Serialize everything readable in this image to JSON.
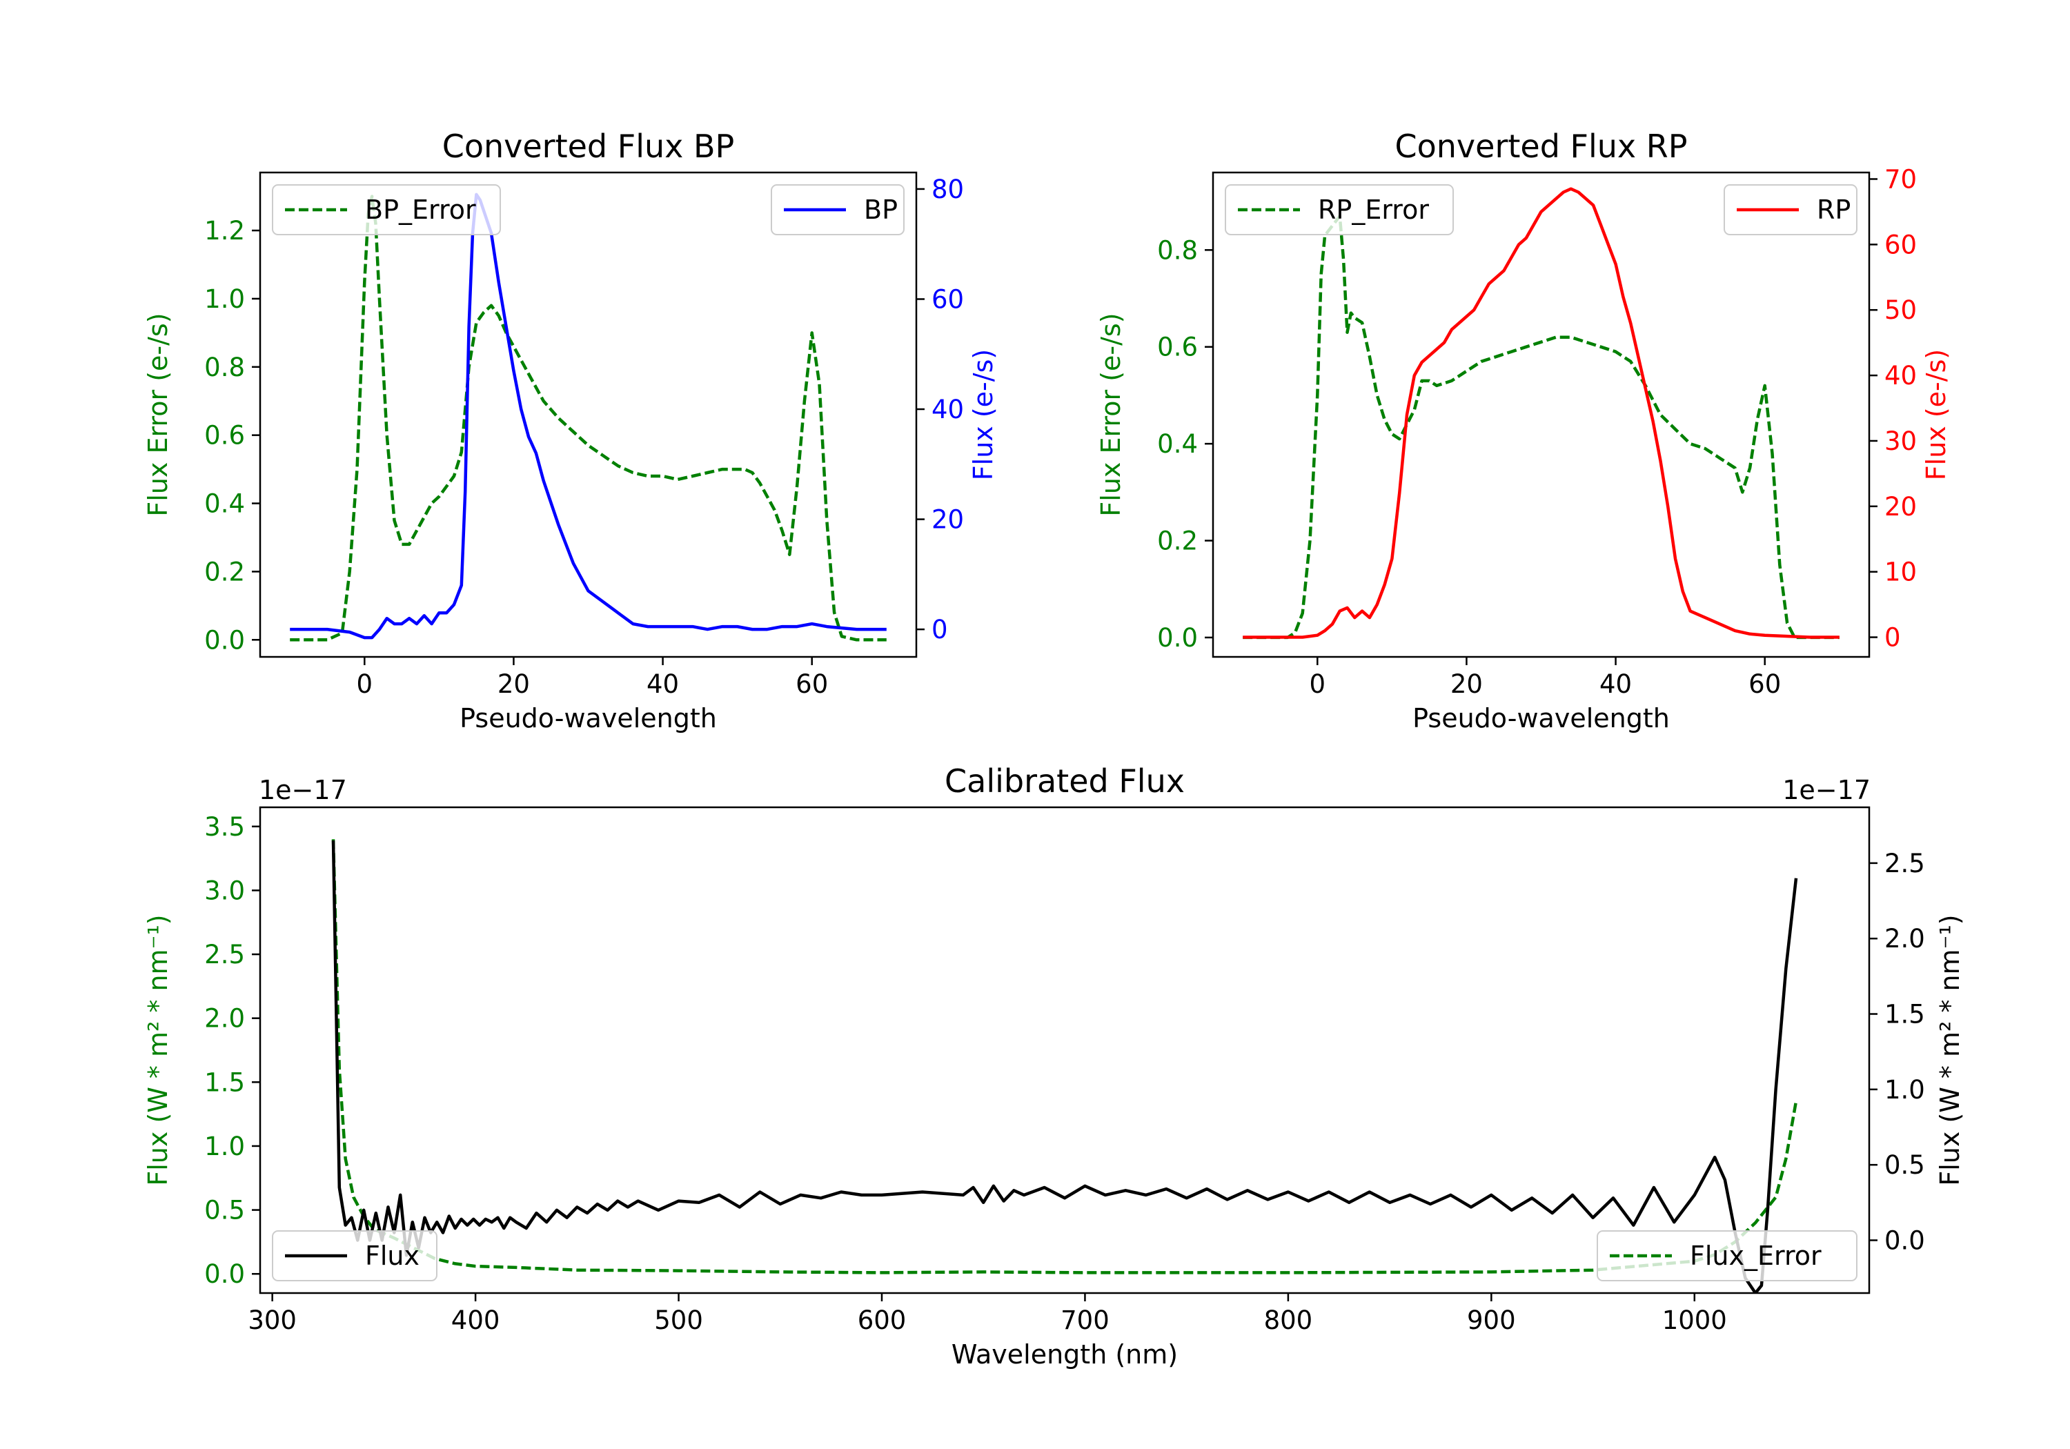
{
  "colors": {
    "bp": "#0000ff",
    "rp": "#ff0000",
    "error": "#008000",
    "flux": "#000000",
    "axis": "#000000"
  },
  "chart_data": [
    {
      "id": "bp",
      "type": "line",
      "title": "Converted Flux BP",
      "xlabel": "Pseudo-wavelength",
      "ylabel_left": "Flux Error (e-/s)",
      "ylabel_right": "Flux (e-/s)",
      "xlim": [
        -14,
        74
      ],
      "ylim_left": [
        -0.05,
        1.37
      ],
      "ylim_right": [
        -5,
        83
      ],
      "xticks": [
        0,
        20,
        40,
        60
      ],
      "yticks_left": [
        0.0,
        0.2,
        0.4,
        0.6,
        0.8,
        1.0,
        1.2
      ],
      "ytick_labels_left": [
        "0.0",
        "0.2",
        "0.4",
        "0.6",
        "0.8",
        "1.0",
        "1.2"
      ],
      "yticks_right": [
        0,
        20,
        40,
        60,
        80
      ],
      "ytick_labels_right": [
        "0",
        "20",
        "40",
        "60",
        "80"
      ],
      "legend_left": "BP_Error",
      "legend_right": "BP",
      "series": [
        {
          "name": "BP_Error",
          "axis": "left",
          "style": "dashed",
          "x": [
            -10,
            -5,
            -3,
            -2,
            -1,
            0,
            0.5,
            1,
            1.5,
            2,
            3,
            4,
            5,
            6,
            7,
            8,
            9,
            10,
            11,
            12,
            13,
            14,
            15,
            16,
            17,
            18,
            19,
            20,
            22,
            24,
            26,
            28,
            30,
            32,
            34,
            36,
            38,
            40,
            42,
            44,
            46,
            48,
            50,
            51,
            52,
            53,
            54,
            55,
            56,
            57,
            58,
            59,
            60,
            61,
            62,
            63,
            64,
            66,
            70
          ],
          "y": [
            0.0,
            0.0,
            0.02,
            0.2,
            0.5,
            1.05,
            1.25,
            1.3,
            1.22,
            1.0,
            0.6,
            0.35,
            0.28,
            0.28,
            0.32,
            0.36,
            0.4,
            0.42,
            0.45,
            0.48,
            0.55,
            0.8,
            0.93,
            0.96,
            0.98,
            0.95,
            0.9,
            0.86,
            0.78,
            0.7,
            0.65,
            0.61,
            0.57,
            0.54,
            0.51,
            0.49,
            0.48,
            0.48,
            0.47,
            0.48,
            0.49,
            0.5,
            0.5,
            0.5,
            0.49,
            0.46,
            0.42,
            0.38,
            0.32,
            0.25,
            0.45,
            0.7,
            0.9,
            0.75,
            0.35,
            0.08,
            0.01,
            0.0,
            0.0
          ]
        },
        {
          "name": "BP",
          "axis": "right",
          "style": "solid",
          "x": [
            -10,
            -5,
            -2,
            0,
            1,
            2,
            3,
            4,
            5,
            6,
            7,
            8,
            9,
            10,
            11,
            12,
            13,
            13.5,
            14,
            14.5,
            15,
            15.5,
            16,
            17,
            18,
            19,
            20,
            21,
            22,
            23,
            24,
            25,
            26,
            28,
            30,
            32,
            34,
            36,
            38,
            40,
            42,
            44,
            46,
            48,
            50,
            52,
            54,
            56,
            58,
            60,
            62,
            66,
            70
          ],
          "y": [
            0,
            0,
            -0.5,
            -1.5,
            -1.5,
            0,
            2,
            1,
            1,
            2,
            1,
            2.5,
            1,
            3,
            3,
            4.5,
            8,
            25,
            55,
            72,
            79,
            78,
            76,
            72,
            63,
            55,
            47,
            40,
            35,
            32,
            27,
            23,
            19,
            12,
            7,
            5,
            3,
            1,
            0.5,
            0.5,
            0.5,
            0.5,
            0,
            0.5,
            0.5,
            0,
            0,
            0.5,
            0.5,
            1,
            0.5,
            0,
            0
          ]
        }
      ]
    },
    {
      "id": "rp",
      "type": "line",
      "title": "Converted Flux RP",
      "xlabel": "Pseudo-wavelength",
      "ylabel_left": "Flux Error (e-/s)",
      "ylabel_right": "Flux (e-/s)",
      "xlim": [
        -14,
        74
      ],
      "ylim_left": [
        -0.04,
        0.96
      ],
      "ylim_right": [
        -3,
        71
      ],
      "xticks": [
        0,
        20,
        40,
        60
      ],
      "yticks_left": [
        0.0,
        0.2,
        0.4,
        0.6,
        0.8
      ],
      "ytick_labels_left": [
        "0.0",
        "0.2",
        "0.4",
        "0.6",
        "0.8"
      ],
      "yticks_right": [
        0,
        10,
        20,
        30,
        40,
        50,
        60,
        70
      ],
      "ytick_labels_right": [
        "0",
        "10",
        "20",
        "30",
        "40",
        "50",
        "60",
        "70"
      ],
      "legend_left": "RP_Error",
      "legend_right": "RP",
      "series": [
        {
          "name": "RP_Error",
          "axis": "left",
          "style": "dashed",
          "x": [
            -10,
            -4,
            -3,
            -2,
            -1,
            0,
            0.5,
            1,
            2,
            3,
            3.5,
            4,
            4.5,
            5,
            6,
            7,
            8,
            9,
            10,
            11,
            12,
            13,
            14,
            15,
            16,
            18,
            20,
            22,
            24,
            26,
            28,
            30,
            32,
            34,
            36,
            38,
            40,
            42,
            44,
            46,
            48,
            50,
            52,
            54,
            55,
            56,
            57,
            58,
            59,
            60,
            61,
            62,
            63,
            64,
            66,
            70
          ],
          "y": [
            0.0,
            0.0,
            0.01,
            0.05,
            0.2,
            0.5,
            0.75,
            0.83,
            0.85,
            0.87,
            0.78,
            0.63,
            0.67,
            0.66,
            0.65,
            0.58,
            0.5,
            0.45,
            0.42,
            0.41,
            0.44,
            0.47,
            0.53,
            0.53,
            0.52,
            0.53,
            0.55,
            0.57,
            0.58,
            0.59,
            0.6,
            0.61,
            0.62,
            0.62,
            0.61,
            0.6,
            0.59,
            0.57,
            0.52,
            0.46,
            0.43,
            0.4,
            0.39,
            0.37,
            0.36,
            0.35,
            0.3,
            0.35,
            0.45,
            0.52,
            0.38,
            0.15,
            0.03,
            0.0,
            0.0,
            0.0
          ]
        },
        {
          "name": "RP",
          "axis": "right",
          "style": "solid",
          "x": [
            -10,
            -5,
            -2,
            0,
            1,
            2,
            3,
            4,
            5,
            6,
            7,
            8,
            9,
            10,
            11,
            12,
            13,
            14,
            15,
            16,
            17,
            18,
            19,
            20,
            21,
            22,
            23,
            24,
            25,
            26,
            27,
            28,
            29,
            30,
            31,
            32,
            33,
            34,
            35,
            36,
            37,
            38,
            39,
            40,
            41,
            42,
            43,
            44,
            45,
            46,
            47,
            48,
            49,
            50,
            52,
            54,
            56,
            58,
            60,
            62,
            66,
            70
          ],
          "y": [
            0,
            0,
            0,
            0.3,
            1,
            2,
            4,
            4.5,
            3,
            4,
            3,
            5,
            8,
            12,
            22,
            34,
            40,
            42,
            43,
            44,
            45,
            47,
            48,
            49,
            50,
            52,
            54,
            55,
            56,
            58,
            60,
            61,
            63,
            65,
            66,
            67,
            68,
            68.5,
            68,
            67,
            66,
            63,
            60,
            57,
            52,
            48,
            43,
            38,
            33,
            27,
            20,
            12,
            7,
            4,
            3,
            2,
            1,
            0.5,
            0.3,
            0.2,
            0,
            0
          ]
        }
      ]
    },
    {
      "id": "calibrated",
      "type": "line",
      "title": "Calibrated Flux",
      "xlabel": "Wavelength (nm)",
      "ylabel_left": "Flux (W * m² * nm⁻¹)",
      "ylabel_right": "Flux (W * m² * nm⁻¹)",
      "offset_left": "1e−17",
      "offset_right": "1e−17",
      "xlim": [
        294,
        1086
      ],
      "ylim_left": [
        -0.15,
        3.65
      ],
      "ylim_right": [
        -0.35,
        2.87
      ],
      "xticks": [
        300,
        400,
        500,
        600,
        700,
        800,
        900,
        1000
      ],
      "yticks_left": [
        0.0,
        0.5,
        1.0,
        1.5,
        2.0,
        2.5,
        3.0,
        3.5
      ],
      "ytick_labels_left": [
        "0.0",
        "0.5",
        "1.0",
        "1.5",
        "2.0",
        "2.5",
        "3.0",
        "3.5"
      ],
      "yticks_right": [
        0.0,
        0.5,
        1.0,
        1.5,
        2.0,
        2.5
      ],
      "ytick_labels_right": [
        "0.0",
        "0.5",
        "1.0",
        "1.5",
        "2.0",
        "2.5"
      ],
      "legend_left": "Flux",
      "legend_right": "Flux_Error",
      "series": [
        {
          "name": "Flux_Error",
          "axis": "left",
          "style": "dashed",
          "x": [
            330,
            333,
            336,
            340,
            345,
            350,
            360,
            370,
            380,
            390,
            400,
            420,
            450,
            500,
            550,
            600,
            650,
            700,
            800,
            900,
            950,
            1000,
            1010,
            1020,
            1030,
            1040,
            1045,
            1050
          ],
          "y": [
            3.4,
            1.6,
            0.9,
            0.6,
            0.45,
            0.35,
            0.28,
            0.2,
            0.12,
            0.08,
            0.06,
            0.05,
            0.03,
            0.025,
            0.015,
            0.01,
            0.015,
            0.01,
            0.01,
            0.015,
            0.03,
            0.1,
            0.15,
            0.25,
            0.4,
            0.6,
            0.9,
            1.35
          ]
        },
        {
          "name": "Flux",
          "axis": "right",
          "style": "solid",
          "x": [
            330,
            333,
            336,
            339,
            342,
            345,
            348,
            351,
            354,
            357,
            360,
            363,
            366,
            369,
            372,
            375,
            378,
            381,
            384,
            387,
            390,
            393,
            396,
            399,
            402,
            405,
            408,
            411,
            414,
            417,
            420,
            425,
            430,
            435,
            440,
            445,
            450,
            455,
            460,
            465,
            470,
            475,
            480,
            490,
            500,
            510,
            520,
            530,
            540,
            550,
            560,
            570,
            580,
            590,
            600,
            620,
            640,
            645,
            650,
            655,
            660,
            665,
            670,
            680,
            690,
            700,
            710,
            720,
            730,
            740,
            750,
            760,
            770,
            780,
            790,
            800,
            810,
            820,
            830,
            840,
            850,
            860,
            870,
            880,
            890,
            900,
            910,
            920,
            930,
            940,
            950,
            960,
            970,
            980,
            990,
            1000,
            1010,
            1015,
            1020,
            1025,
            1030,
            1033,
            1036,
            1040,
            1045,
            1050
          ],
          "y": [
            2.65,
            0.35,
            0.1,
            0.15,
            0.0,
            0.2,
            0.0,
            0.18,
            0.0,
            0.22,
            0.05,
            0.3,
            -0.1,
            0.12,
            -0.05,
            0.15,
            0.05,
            0.12,
            0.05,
            0.16,
            0.08,
            0.14,
            0.1,
            0.14,
            0.1,
            0.14,
            0.12,
            0.15,
            0.08,
            0.15,
            0.12,
            0.08,
            0.18,
            0.12,
            0.2,
            0.15,
            0.22,
            0.18,
            0.24,
            0.2,
            0.26,
            0.22,
            0.26,
            0.2,
            0.26,
            0.25,
            0.3,
            0.22,
            0.32,
            0.24,
            0.3,
            0.28,
            0.32,
            0.3,
            0.3,
            0.32,
            0.3,
            0.35,
            0.25,
            0.36,
            0.26,
            0.33,
            0.3,
            0.35,
            0.28,
            0.36,
            0.3,
            0.33,
            0.3,
            0.34,
            0.28,
            0.34,
            0.27,
            0.33,
            0.27,
            0.32,
            0.26,
            0.32,
            0.25,
            0.32,
            0.25,
            0.3,
            0.24,
            0.3,
            0.22,
            0.3,
            0.2,
            0.28,
            0.18,
            0.3,
            0.15,
            0.28,
            0.1,
            0.35,
            0.12,
            0.3,
            0.55,
            0.4,
            0.05,
            -0.25,
            -0.35,
            -0.3,
            0.2,
            1.0,
            1.8,
            2.4
          ]
        }
      ]
    }
  ]
}
